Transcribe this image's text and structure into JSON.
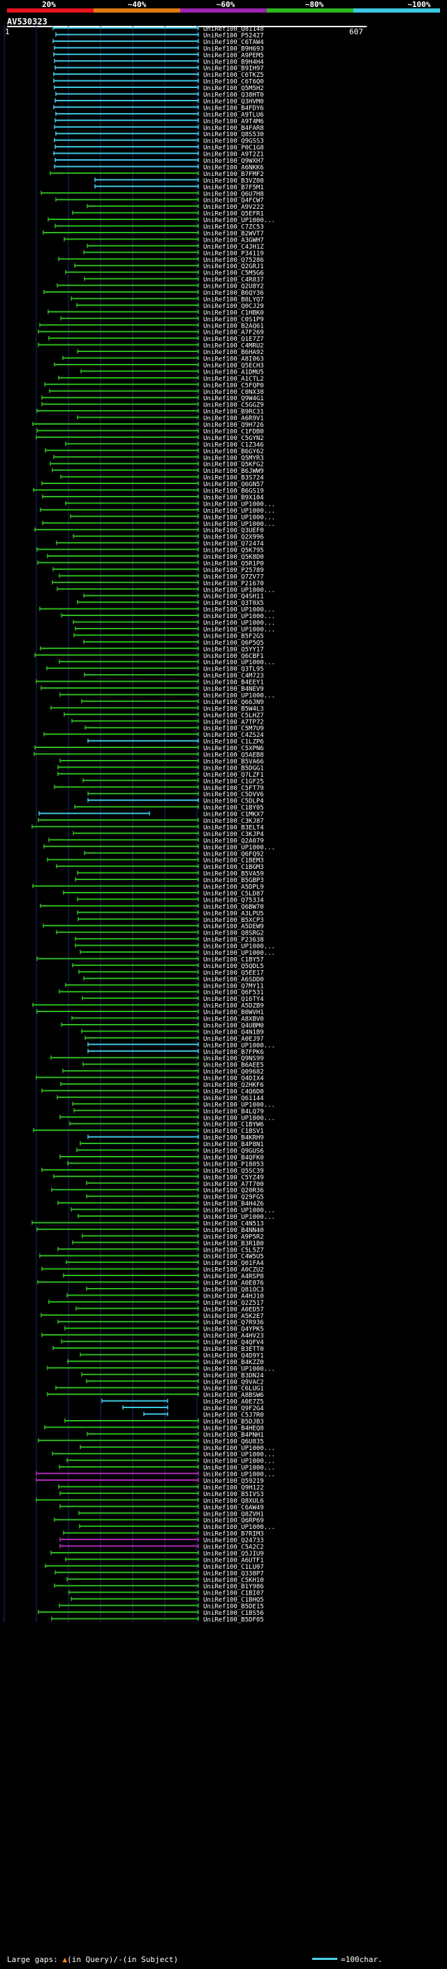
{
  "legend": {
    "labels": [
      "20%",
      "~40%",
      "~60%",
      "~80%",
      "~100%"
    ],
    "colors": [
      "#e8141e",
      "#e07a12",
      "#9a24b0",
      "#2db81f",
      "#3fc8e2"
    ]
  },
  "query": {
    "id": "AV530323",
    "ruler_start": "1",
    "ruler_end": "607"
  },
  "colors": {
    "background": "#000000",
    "grid": "#1b2b6e",
    "cyan": "#3fc8e2",
    "green": "#2db81f",
    "magenta": "#b02ab8",
    "label": "#ffffff"
  },
  "hits": [
    "UniRef100_Q81148",
    "UniRef100_P52427",
    "UniRef100_C6TAW4",
    "UniRef100_B9H693",
    "UniRef100_A9PEM5",
    "UniRef100_B9H4H4",
    "UniRef100_B9IH97",
    "UniRef100_C6TKZ5",
    "UniRef100_C6T6Q0",
    "UniRef100_Q5M5H2",
    "UniRef100_Q38HT0",
    "UniRef100_Q3HVM0",
    "UniRef100_B4FDY6",
    "UniRef100_A9TLU6",
    "UniRef100_A9T4M6",
    "UniRef100_B4FAR8",
    "UniRef100_Q8S530",
    "UniRef100_Q9GSS3",
    "UniRef100_P0C1G8",
    "UniRef100_A9T2Z1",
    "UniRef100_Q9WXH7",
    "UniRef100_A6NKK6",
    "UniRef100_B7FMF2",
    "UniRef100_B3VZ08",
    "UniRef100_B7F5M1",
    "UniRef100_Q6U7H8",
    "UniRef100_Q4FCW7",
    "UniRef100_A9V222",
    "UniRef100_Q5EFR1",
    "UniRef100_UP1000...",
    "UniRef100_C7ZC53",
    "UniRef100_B2WVT7",
    "UniRef100_A3GWH7",
    "UniRef100_C4JH1Z",
    "UniRef100_P34119",
    "UniRef100_Q75286",
    "UniRef100_Q2GRJ1",
    "UniRef100_C5M5G6",
    "UniRef100_C4R837",
    "UniRef100_Q2U8Y2",
    "UniRef100_B6QY36",
    "UniRef100_B8LYQ7",
    "UniRef100_Q0CJ29",
    "UniRef100_C1HBK0",
    "UniRef100_C0S1P9",
    "UniRef100_B2AQ61",
    "UniRef100_A7F269",
    "UniRef100_Q1E7Z7",
    "UniRef100_C4MRU2",
    "UniRef100_B6HA92",
    "UniRef100_A8I063",
    "UniRef100_Q5ECH3",
    "UniRef100_A1DMU5",
    "UniRef100_A1CTL2",
    "UniRef100_C5FQP0",
    "UniRef100_C0NX38",
    "UniRef100_Q9W4G1",
    "UniRef100_C5GGZ9",
    "UniRef100_B9RC31",
    "UniRef100_A6R9V1",
    "UniRef100_Q9H726",
    "UniRef100_C1FDB0",
    "UniRef100_C5GYN2",
    "UniRef100_C1Z346",
    "UniRef100_B6GY62",
    "UniRef100_Q5MYR3",
    "UniRef100_Q5KFG2",
    "UniRef100_B6JWW9",
    "UniRef100_B3S724",
    "UniRef100_Q6GN57",
    "UniRef100_B6GS19",
    "UniRef100_B9X104",
    "UniRef100_UP1000...",
    "UniRef100_UP1000...",
    "UniRef100_UP1000...",
    "UniRef100_UP1000...",
    "UniRef100_Q3UEF0",
    "UniRef100_Q2X996",
    "UniRef100_Q72474",
    "UniRef100_Q5K795",
    "UniRef100_Q5K8D0",
    "UniRef100_Q5R1P0",
    "UniRef100_P25789",
    "UniRef100_Q7ZV77",
    "UniRef100_P21670",
    "UniRef100_UP1000...",
    "UniRef100_Q4SH11",
    "UniRef100_Q3T0X5",
    "UniRef100_UP1000...",
    "UniRef100_UP1000...",
    "UniRef100_UP1000...",
    "UniRef100_UP1000...",
    "UniRef100_B5F2G5",
    "UniRef100_Q6P5Q5",
    "UniRef100_Q5YY17",
    "UniRef100_Q6CBF1",
    "UniRef100_UP1000...",
    "UniRef100_Q3TL95",
    "UniRef100_C4M723",
    "UniRef100_B4EEY1",
    "UniRef100_B4NEV9",
    "UniRef100_UP1000...",
    "UniRef100_Q66JN9",
    "UniRef100_B5W4L3",
    "UniRef100_C5LHZ7",
    "UniRef100_A7TP72",
    "UniRef100_C5M7U9",
    "UniRef100_C4ZS24",
    "UniRef100_C1LZP6",
    "UniRef100_C5XPN6",
    "UniRef100_Q5AEB8",
    "UniRef100_B5VA66",
    "UniRef100_B5DGG1",
    "UniRef100_Q7LZF1",
    "UniRef100_C1GF25",
    "UniRef100_C5FT79",
    "UniRef100_C5DVV6",
    "UniRef100_C5DLP4",
    "UniRef100_C1BY05",
    "UniRef100_C1MKX7",
    "UniRef100_C3KJ87",
    "UniRef100_B3ELT4",
    "UniRef100_C3KJP4",
    "UniRef100_Q2A079",
    "UniRef100_UP1000...",
    "UniRef100_Q6FQ92",
    "UniRef100_C1BEM3",
    "UniRef100_C1BGM3",
    "UniRef100_B5VA59",
    "UniRef100_B5GBP3",
    "UniRef100_A5DPL9",
    "UniRef100_C5LD87",
    "UniRef100_Q753J4",
    "UniRef100_Q6BW70",
    "UniRef100_A3LPU5",
    "UniRef100_B5XCP3",
    "UniRef100_A5DEW9",
    "UniRef100_Q8SRG2",
    "UniRef100_P23638",
    "UniRef100_UP1000...",
    "UniRef100_UP1000...",
    "UniRef100_C1BY57",
    "UniRef100_Q5QDL5",
    "UniRef100_Q5EE17",
    "UniRef100_A6SDD0",
    "UniRef100_Q7MY11",
    "UniRef100_Q6F531",
    "UniRef100_Q16TY4",
    "UniRef100_A5DZB9",
    "UniRef100_B0WVH1",
    "UniRef100_A8XBV0",
    "UniRef100_Q4UBM0",
    "UniRef100_Q4N1B9",
    "UniRef100_A0EJ97",
    "UniRef100_UP1000...",
    "UniRef100_B7FPK6",
    "UniRef100_Q9NS99",
    "UniRef100_B6AEE5",
    "UniRef100_Q09682",
    "UniRef100_Q4DIX4",
    "UniRef100_Q2HKF6",
    "UniRef100_C4Q6D0",
    "UniRef100_Q61144",
    "UniRef100_UP1000...",
    "UniRef100_B4LQ79",
    "UniRef100_UP1000...",
    "UniRef100_C1BYW6",
    "UniRef100_C1BSV1",
    "UniRef100_B4KRH9",
    "UniRef100_B4P8N1",
    "UniRef100_Q9GUS6",
    "UniRef100_B4QFK0",
    "UniRef100_P18053",
    "UniRef100_Q5SC39",
    "UniRef100_C5YZ49",
    "UniRef100_A7T700",
    "UniRef100_Q20R36",
    "UniRef100_Q29FG5",
    "UniRef100_B4H4Z6",
    "UniRef100_UP1000...",
    "UniRef100_UP1000...",
    "UniRef100_C4N513",
    "UniRef100_B4NN40",
    "UniRef100_A9P5R2",
    "UniRef100_B3R1B0",
    "UniRef100_C5L5Z7",
    "UniRef100_C4W5U5",
    "UniRef100_Q01FA4",
    "UniRef100_A0CZU2",
    "UniRef100_A4RSP8",
    "UniRef100_A0E876",
    "UniRef100_Q81OC3",
    "UniRef100_A4HJ10",
    "UniRef100_Q2Z517",
    "UniRef100_A0ED57",
    "UniRef100_A5K2E7",
    "UniRef100_Q7R936",
    "UniRef100_Q4YPK5",
    "UniRef100_A4HV23",
    "UniRef100_Q4QFV4",
    "UniRef100_B3ETT0",
    "UniRef100_Q4D9Y1",
    "UniRef100_B4KZZ0",
    "UniRef100_UP1000...",
    "UniRef100_B3DN24",
    "UniRef100_Q9VAC2",
    "UniRef100_C6LUG1",
    "UniRef100_A8BSW6",
    "UniRef100_A0E7Z5",
    "UniRef100_Q9F2G4",
    "UniRef100_C5J7R0",
    "UniRef100_B5DJB3",
    "UniRef100_B4HEQ8",
    "UniRef100_B4PNH1",
    "UniRef100_Q6U835",
    "UniRef100_UP1000...",
    "UniRef100_UP1000...",
    "UniRef100_UP1000...",
    "UniRef100_UP1000...",
    "UniRef100_UP1000...",
    "UniRef100_Q59219",
    "UniRef100_Q9H122",
    "UniRef100_B5IVS3",
    "UniRef100_Q8XUL6",
    "UniRef100_C6AW49",
    "UniRef100_Q8ZVH1",
    "UniRef100_Q6RP69",
    "UniRef100_UP1000...",
    "UniRef100_B7RIM3",
    "UniRef100_Q24733",
    "UniRef100_C5A2C2",
    "UniRef100_Q5JIU9",
    "UniRef100_A6UTF1",
    "UniRef100_C1LU07",
    "UniRef100_Q338P7",
    "UniRef100_C5KH10",
    "UniRef100_B1Y986",
    "UniRef100_C1BI07",
    "UniRef100_C1BHQ5",
    "UniRef100_B5DE15",
    "UniRef100_C1BS56",
    "UniRef100_B5DF05"
  ],
  "footer": {
    "large_gaps": "Large gaps:",
    "in_query": "(in Query)",
    "sep": "/",
    "in_subject": "-(in Subject)",
    "scale_label": "=100char."
  }
}
